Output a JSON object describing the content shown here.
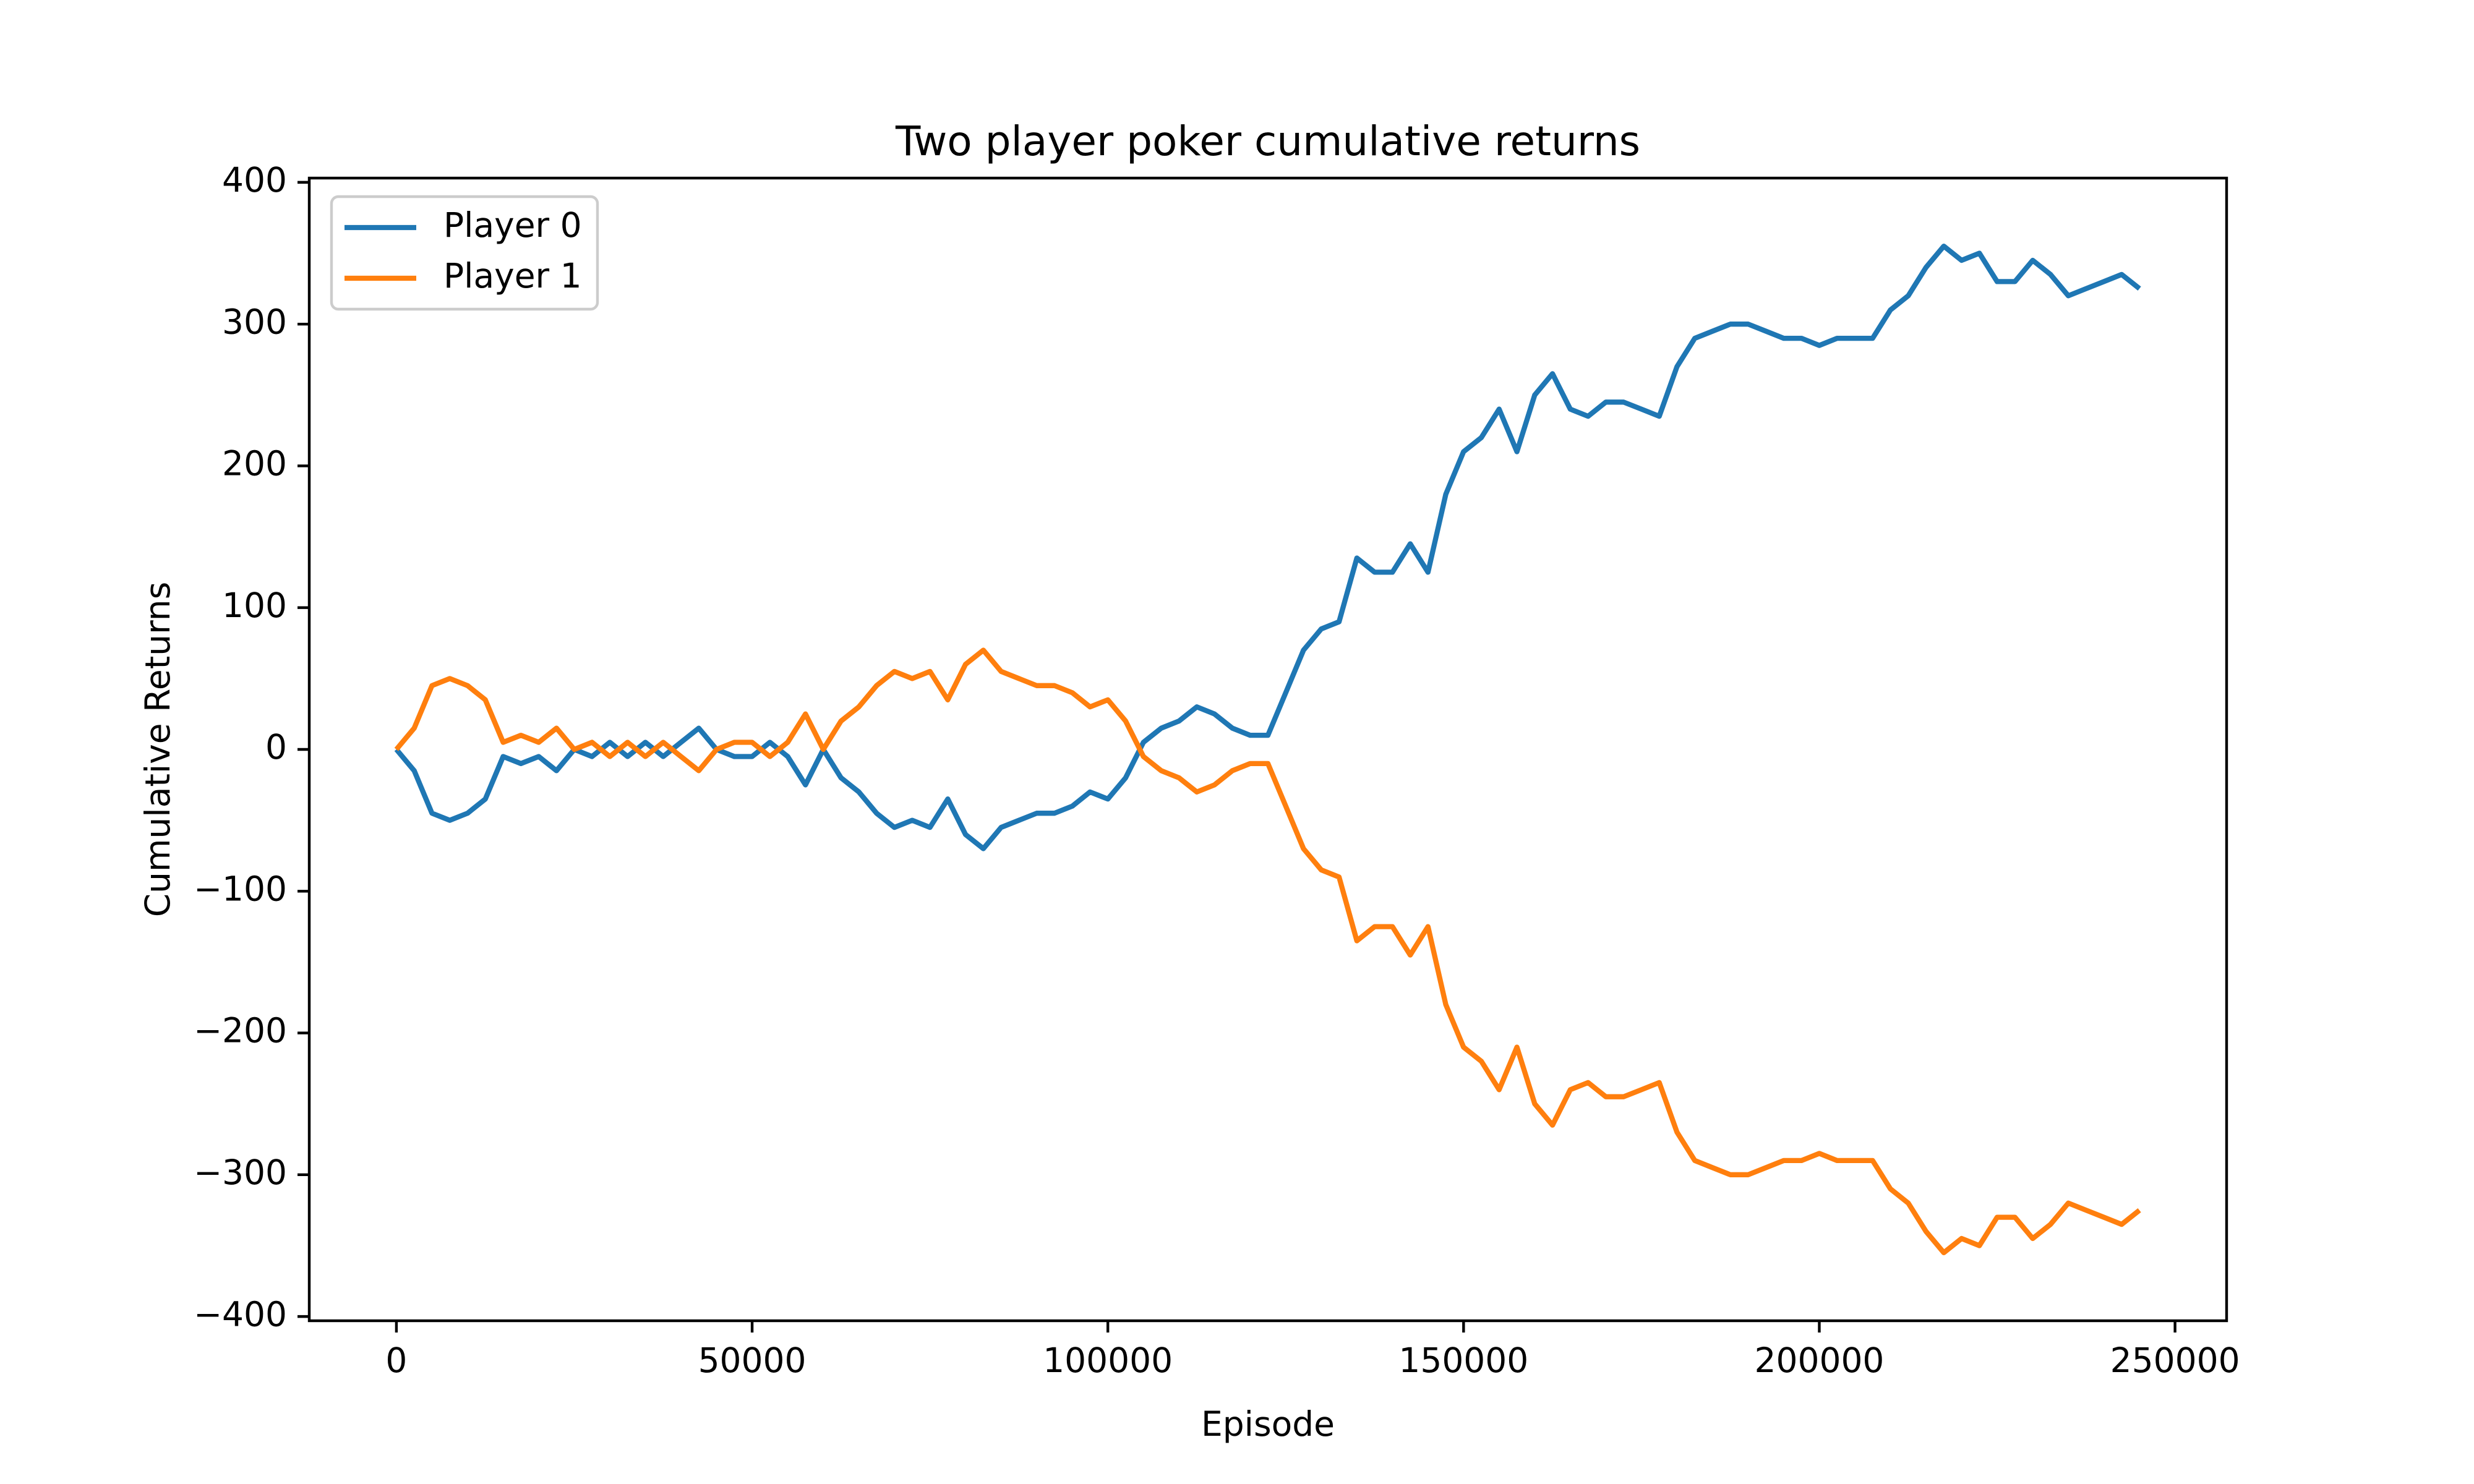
{
  "chart_data": {
    "type": "line",
    "title": "Two player poker cumulative returns",
    "x_label": "Episode",
    "y_label": "Cumulative Returns",
    "x": [
      0,
      2500,
      5000,
      7500,
      10000,
      12500,
      15000,
      17500,
      20000,
      22500,
      25000,
      27500,
      30000,
      32500,
      35000,
      37500,
      40000,
      42500,
      45000,
      47500,
      50000,
      52500,
      55000,
      57500,
      60000,
      62500,
      65000,
      67500,
      70000,
      72500,
      75000,
      77500,
      80000,
      82500,
      85000,
      87500,
      90000,
      92500,
      95000,
      97500,
      100000,
      102500,
      105000,
      107500,
      110000,
      112500,
      115000,
      117500,
      120000,
      122500,
      125000,
      127500,
      130000,
      132500,
      135000,
      137500,
      140000,
      142500,
      145000,
      147500,
      150000,
      152500,
      155000,
      157500,
      160000,
      162500,
      165000,
      167500,
      170000,
      172500,
      175000,
      177500,
      180000,
      182500,
      185000,
      187500,
      190000,
      192500,
      195000,
      197500,
      200000,
      202500,
      205000,
      207500,
      210000,
      212500,
      215000,
      217500,
      220000,
      222500,
      225000,
      227500,
      230000,
      232500,
      235000,
      237500,
      240000,
      242500,
      245000
    ],
    "series": [
      {
        "name": "Player 0",
        "color": "#1f77b4",
        "values": [
          0,
          -15,
          -45,
          -50,
          -45,
          -35,
          -5,
          -10,
          -5,
          -15,
          0,
          -5,
          5,
          -5,
          5,
          -5,
          5,
          15,
          0,
          -5,
          -5,
          5,
          -5,
          -25,
          0,
          -20,
          -30,
          -45,
          -55,
          -50,
          -55,
          -35,
          -60,
          -70,
          -55,
          -50,
          -45,
          -45,
          -40,
          -30,
          -35,
          -20,
          5,
          15,
          20,
          30,
          25,
          15,
          10,
          10,
          40,
          70,
          85,
          90,
          135,
          125,
          125,
          145,
          125,
          180,
          210,
          220,
          240,
          210,
          250,
          265,
          240,
          235,
          245,
          245,
          240,
          235,
          270,
          290,
          295,
          300,
          300,
          295,
          290,
          290,
          285,
          290,
          290,
          290,
          310,
          320,
          340,
          355,
          345,
          350,
          330,
          330,
          345,
          335,
          320,
          325,
          330,
          335,
          325
        ]
      },
      {
        "name": "Player 1",
        "color": "#ff7f0e",
        "values": [
          0,
          15,
          45,
          50,
          45,
          35,
          5,
          10,
          5,
          15,
          0,
          5,
          -5,
          5,
          -5,
          5,
          -5,
          -15,
          0,
          5,
          5,
          -5,
          5,
          25,
          0,
          20,
          30,
          45,
          55,
          50,
          55,
          35,
          60,
          70,
          55,
          50,
          45,
          45,
          40,
          30,
          35,
          20,
          -5,
          -15,
          -20,
          -30,
          -25,
          -15,
          -10,
          -10,
          -40,
          -70,
          -85,
          -90,
          -135,
          -125,
          -125,
          -145,
          -125,
          -180,
          -210,
          -220,
          -240,
          -210,
          -250,
          -265,
          -240,
          -235,
          -245,
          -245,
          -240,
          -235,
          -270,
          -290,
          -295,
          -300,
          -300,
          -295,
          -290,
          -290,
          -285,
          -290,
          -290,
          -290,
          -310,
          -320,
          -340,
          -355,
          -345,
          -350,
          -330,
          -330,
          -345,
          -335,
          -320,
          -325,
          -330,
          -335,
          -325
        ]
      }
    ],
    "xlim": [
      -12250,
      257250
    ],
    "xticks": [
      0,
      50000,
      100000,
      150000,
      200000,
      250000
    ],
    "ylim": [
      -403,
      403
    ],
    "yticks": [
      {
        "value": -400,
        "label": "−400"
      },
      {
        "value": -300,
        "label": "−300"
      },
      {
        "value": -200,
        "label": "−200"
      },
      {
        "value": -100,
        "label": "−100"
      },
      0,
      100,
      200,
      300,
      400
    ],
    "legend": "upper left",
    "grid": false
  }
}
